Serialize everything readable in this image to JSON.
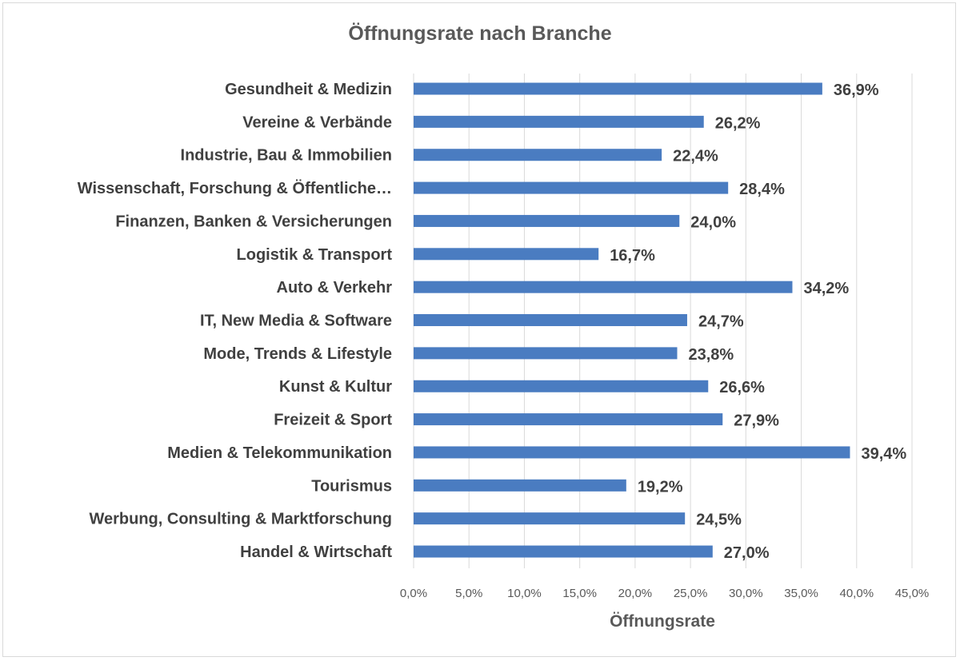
{
  "chart_data": {
    "type": "bar",
    "orientation": "horizontal",
    "title": "Öffnungsrate nach Branche",
    "xlabel": "Öffnungsrate",
    "ylabel": "",
    "xlim": [
      0,
      45
    ],
    "x_ticks": [
      "0,0%",
      "5,0%",
      "10,0%",
      "15,0%",
      "20,0%",
      "25,0%",
      "30,0%",
      "35,0%",
      "40,0%",
      "45,0%"
    ],
    "grid": true,
    "bar_color": "#4a7cc1",
    "categories": [
      "Gesundheit & Medizin",
      "Vereine & Verbände",
      "Industrie, Bau & Immobilien",
      "Wissenschaft, Forschung & Öffentliche…",
      "Finanzen, Banken & Versicherungen",
      "Logistik & Transport",
      "Auto & Verkehr",
      "IT, New Media & Software",
      "Mode, Trends & Lifestyle",
      "Kunst & Kultur",
      "Freizeit & Sport",
      "Medien & Telekommunikation",
      "Tourismus",
      "Werbung, Consulting & Marktforschung",
      "Handel & Wirtschaft"
    ],
    "values": [
      36.9,
      26.2,
      22.4,
      28.4,
      24.0,
      16.7,
      34.2,
      24.7,
      23.8,
      26.6,
      27.9,
      39.4,
      19.2,
      24.5,
      27.0
    ],
    "data_labels": [
      "36,9%",
      "26,2%",
      "22,4%",
      "28,4%",
      "24,0%",
      "16,7%",
      "34,2%",
      "24,7%",
      "23,8%",
      "26,6%",
      "27,9%",
      "39,4%",
      "19,2%",
      "24,5%",
      "27,0%"
    ]
  }
}
